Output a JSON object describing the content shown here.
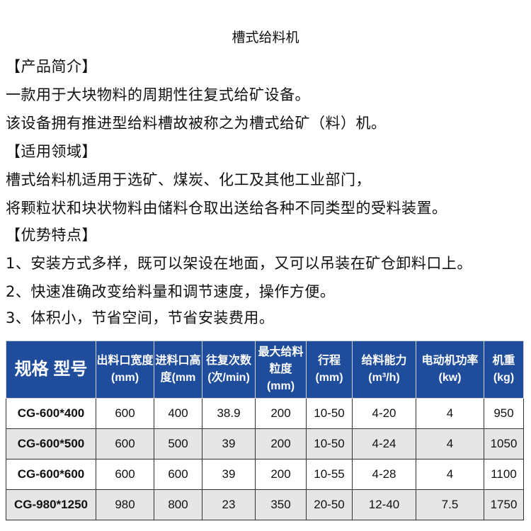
{
  "title": "槽式给料机",
  "lines": [
    "【产品简介】",
    "一款用于大块物料的周期性往复式给矿设备。",
    "该设备拥有推进型给料槽故被称之为槽式给矿（料）机。",
    "【适用领域】",
    "槽式给料机适用于选矿、煤炭、化工及其他工业部门，",
    "将颗粒状和块状物料由储料仓取出送给各种不同类型的受料装置。",
    "【优势特点】",
    "1、安装方式多样，既可以架设在地面，又可以吊装在矿仓卸料口上。",
    "2、快速准确改变给料量和调节速度，操作方便。",
    "3、体积小，节省空间，节省安装费用。"
  ],
  "table": {
    "header_color": "#1f4d9c",
    "headers": [
      "规格 型号",
      "出料口宽度(mm)",
      "进料口高度(mm",
      "往复次数 (次/min)",
      "最大给料粒度(mm)",
      "行程(mm)",
      "给料能力(m³/h)",
      "电动机功率(kw)",
      "机重(kg)"
    ],
    "rows": [
      [
        "CG-600*400",
        "600",
        "400",
        "38.9",
        "200",
        "10-50",
        "4-20",
        "4",
        "950"
      ],
      [
        "CG-600*500",
        "600",
        "500",
        "39",
        "200",
        "10-50",
        "4-24",
        "4",
        "1050"
      ],
      [
        "CG-600*600",
        "600",
        "600",
        "39",
        "200",
        "10-55",
        "4-28",
        "4",
        "1100"
      ],
      [
        "CG-980*1250",
        "980",
        "800",
        "23",
        "350",
        "20-50",
        "12-40",
        "7.5",
        "1750"
      ]
    ]
  }
}
